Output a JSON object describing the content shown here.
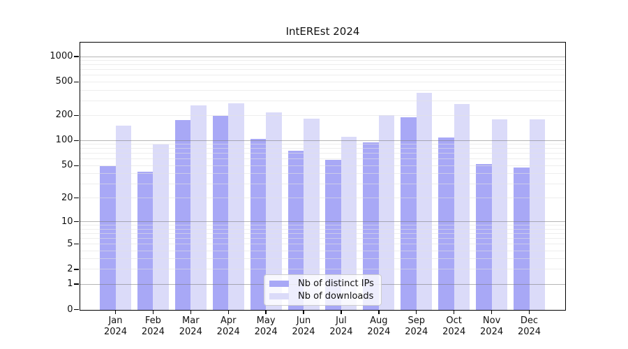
{
  "title": "IntEREst 2024",
  "chart_data": {
    "type": "bar",
    "title": "IntEREst 2024",
    "categories": [
      "Jan",
      "Feb",
      "Mar",
      "Apr",
      "May",
      "Jun",
      "Jul",
      "Aug",
      "Sep",
      "Oct",
      "Nov",
      "Dec"
    ],
    "category_year": "2024",
    "series": [
      {
        "name": "Nb of distinct IPs",
        "color": "#a8a8f6",
        "values": [
          49,
          42,
          176,
          197,
          105,
          75,
          59,
          96,
          191,
          108,
          52,
          47
        ]
      },
      {
        "name": "Nb of downloads",
        "color": "#dbdbf9",
        "values": [
          151,
          90,
          261,
          278,
          218,
          182,
          112,
          201,
          371,
          271,
          178,
          178
        ]
      }
    ],
    "xlabel": "",
    "ylabel": "",
    "yscale": "log10(value+1)",
    "yticks": [
      0,
      1,
      2,
      5,
      10,
      20,
      50,
      100,
      200,
      500,
      1000
    ],
    "ytick_labels": [
      "0",
      "1",
      "2",
      "5",
      "10",
      "20",
      "50",
      "100",
      "200",
      "500",
      "1000"
    ],
    "ylim": [
      0,
      1480
    ],
    "grid": "horizontal major (powers of 10) + minor (2-9 per decade), drawn over bars",
    "legend_position": "inside bottom-center",
    "background_color": "#ffffff",
    "major_gridline_values": [
      1,
      10,
      100,
      1000
    ]
  }
}
